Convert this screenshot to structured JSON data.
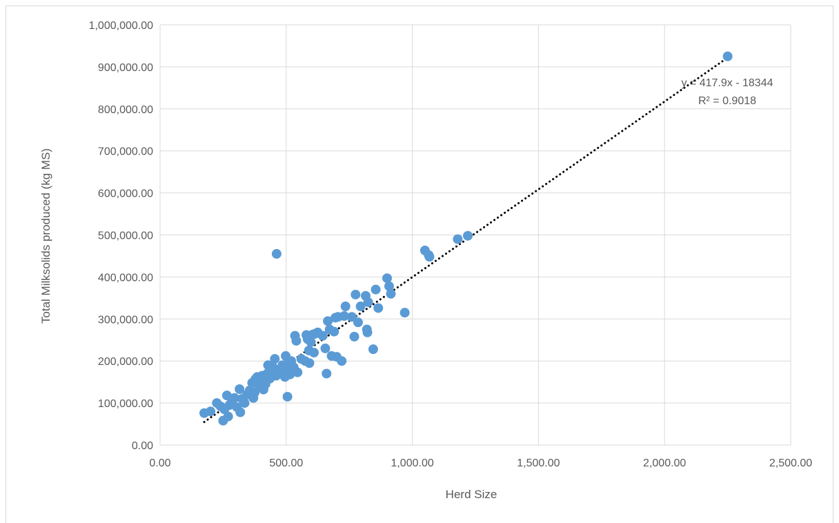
{
  "chart_data": {
    "type": "scatter",
    "title": "",
    "xlabel": "Herd Size",
    "ylabel": "Total Milksolids produced (kg MS)",
    "xlim": [
      0,
      2500
    ],
    "ylim": [
      0,
      1000000
    ],
    "x_ticks": [
      "0.00",
      "500.00",
      "1,000.00",
      "1,500.00",
      "2,000.00",
      "2,500.00"
    ],
    "y_ticks": [
      "0.00",
      "100,000.00",
      "200,000.00",
      "300,000.00",
      "400,000.00",
      "500,000.00",
      "600,000.00",
      "700,000.00",
      "800,000.00",
      "900,000.00",
      "1,000,000.00"
    ],
    "grid": true,
    "marker_color": "#5b9bd5",
    "trendline": {
      "type": "linear",
      "slope": 417.9,
      "intercept": -18344,
      "x_range": [
        175,
        2250
      ],
      "equation": "y = 417.9x - 18344",
      "r_squared": "R² = 0.9018",
      "color": "#000000",
      "style": "dotted"
    },
    "series": [
      {
        "points": [
          [
            175,
            76000
          ],
          [
            200,
            80000
          ],
          [
            225,
            100000
          ],
          [
            240,
            92000
          ],
          [
            250,
            58000
          ],
          [
            255,
            85000
          ],
          [
            265,
            118000
          ],
          [
            270,
            68000
          ],
          [
            275,
            95000
          ],
          [
            285,
            105000
          ],
          [
            295,
            112000
          ],
          [
            305,
            90000
          ],
          [
            315,
            133000
          ],
          [
            318,
            78000
          ],
          [
            325,
            110000
          ],
          [
            335,
            100000
          ],
          [
            345,
            120000
          ],
          [
            355,
            130000
          ],
          [
            365,
            148000
          ],
          [
            370,
            112000
          ],
          [
            375,
            125000
          ],
          [
            378,
            157000
          ],
          [
            385,
            162000
          ],
          [
            392,
            140000
          ],
          [
            400,
            150000
          ],
          [
            405,
            165000
          ],
          [
            410,
            132000
          ],
          [
            418,
            145000
          ],
          [
            425,
            170000
          ],
          [
            428,
            190000
          ],
          [
            435,
            158000
          ],
          [
            440,
            175000
          ],
          [
            448,
            185000
          ],
          [
            455,
            205000
          ],
          [
            460,
            165000
          ],
          [
            462,
            455000
          ],
          [
            470,
            178000
          ],
          [
            478,
            170000
          ],
          [
            485,
            190000
          ],
          [
            495,
            162000
          ],
          [
            498,
            212000
          ],
          [
            500,
            175000
          ],
          [
            505,
            115000
          ],
          [
            510,
            195000
          ],
          [
            515,
            168000
          ],
          [
            520,
            200000
          ],
          [
            530,
            185000
          ],
          [
            535,
            260000
          ],
          [
            540,
            248000
          ],
          [
            545,
            173000
          ],
          [
            560,
            205000
          ],
          [
            575,
            200000
          ],
          [
            580,
            262000
          ],
          [
            585,
            252000
          ],
          [
            590,
            225000
          ],
          [
            592,
            195000
          ],
          [
            598,
            245000
          ],
          [
            605,
            263000
          ],
          [
            610,
            220000
          ],
          [
            615,
            265000
          ],
          [
            625,
            268000
          ],
          [
            645,
            260000
          ],
          [
            655,
            230000
          ],
          [
            660,
            170000
          ],
          [
            665,
            295000
          ],
          [
            672,
            275000
          ],
          [
            680,
            212000
          ],
          [
            690,
            270000
          ],
          [
            695,
            303000
          ],
          [
            700,
            210000
          ],
          [
            705,
            305000
          ],
          [
            720,
            200000
          ],
          [
            730,
            307000
          ],
          [
            735,
            330000
          ],
          [
            760,
            305000
          ],
          [
            770,
            258000
          ],
          [
            775,
            358000
          ],
          [
            785,
            292000
          ],
          [
            795,
            330000
          ],
          [
            815,
            355000
          ],
          [
            820,
            275000
          ],
          [
            822,
            268000
          ],
          [
            825,
            340000
          ],
          [
            845,
            228000
          ],
          [
            855,
            370000
          ],
          [
            865,
            326000
          ],
          [
            900,
            397000
          ],
          [
            908,
            378000
          ],
          [
            915,
            360000
          ],
          [
            970,
            315000
          ],
          [
            1050,
            463000
          ],
          [
            1065,
            452000
          ],
          [
            1068,
            448000
          ],
          [
            1180,
            490000
          ],
          [
            1220,
            498000
          ],
          [
            2250,
            925000
          ]
        ]
      }
    ]
  }
}
